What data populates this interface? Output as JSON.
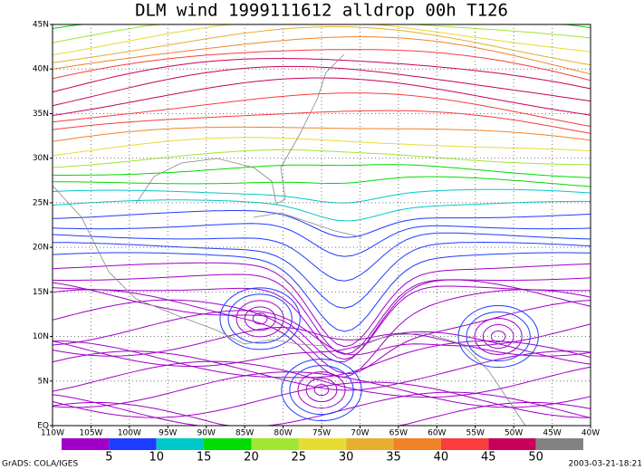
{
  "title": "DLM wind 1999111612 alldrop 00h T126",
  "lon_labels": [
    "110W",
    "105W",
    "100W",
    "95W",
    "90W",
    "85W",
    "80W",
    "75W",
    "70W",
    "65W",
    "60W",
    "55W",
    "50W",
    "45W",
    "40W"
  ],
  "lat_labels": [
    "EQ",
    "5N",
    "10N",
    "15N",
    "20N",
    "25N",
    "30N",
    "35N",
    "40N",
    "45N"
  ],
  "colorbar": {
    "colors": [
      "#a000c8",
      "#1e3cff",
      "#00c8c8",
      "#00dc00",
      "#a0e632",
      "#e6dc32",
      "#e6af2d",
      "#f08228",
      "#fa3c3c",
      "#c8005a",
      "#828282"
    ],
    "labels": [
      5,
      10,
      15,
      20,
      25,
      30,
      35,
      40,
      45,
      50
    ]
  },
  "footer_left": "GrADS: COLA/IGES",
  "footer_right": "2003-03-21-18:21"
}
